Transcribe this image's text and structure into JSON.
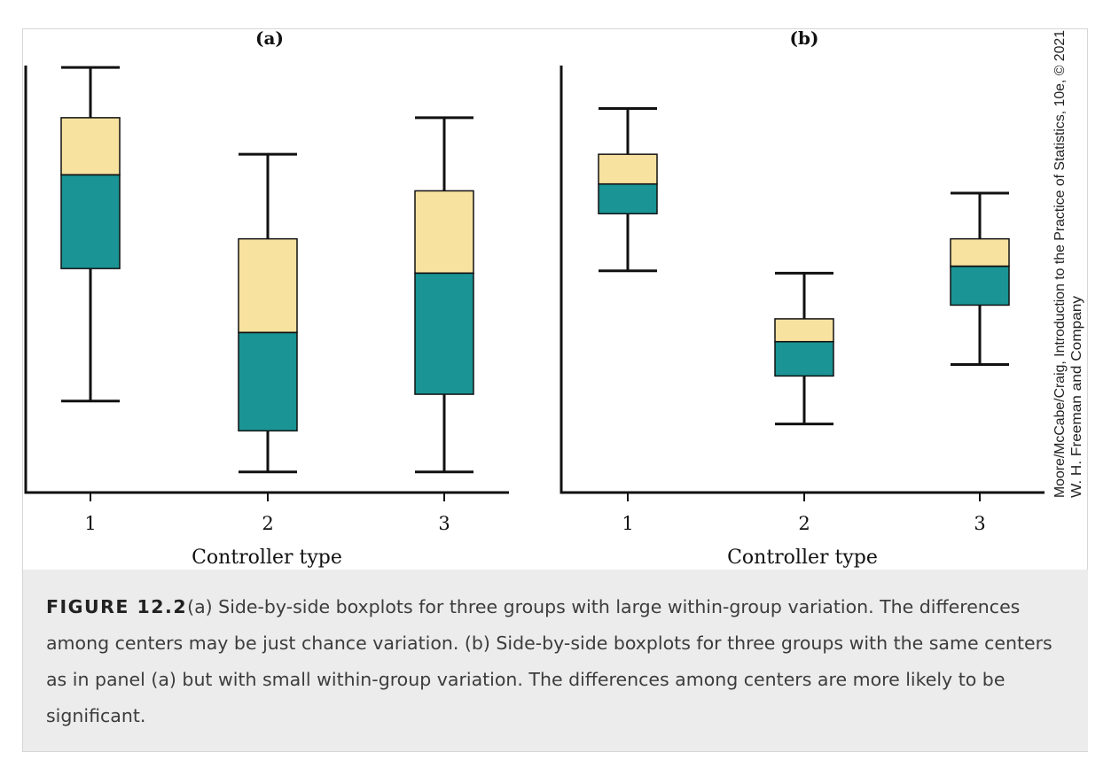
{
  "colors": {
    "upper_box": "#f8e2a0",
    "lower_box": "#1a9494",
    "line": "#111111",
    "caption_bg": "#ececec"
  },
  "chart_data": [
    {
      "type": "boxplot",
      "title": "(a)",
      "xlabel": "Controller type",
      "ylabel": "",
      "categories": [
        "1",
        "2",
        "3"
      ],
      "ylim": [
        0,
        100
      ],
      "boxes": [
        {
          "category": "1",
          "whisker_low": 20,
          "q1": 49,
          "median": 69.5,
          "q3": 82,
          "whisker_high": 93
        },
        {
          "category": "2",
          "whisker_low": 4.5,
          "q1": 13.5,
          "median": 35,
          "q3": 55.5,
          "whisker_high": 74
        },
        {
          "category": "3",
          "whisker_low": 4.5,
          "q1": 21.5,
          "median": 48,
          "q3": 66,
          "whisker_high": 82
        }
      ]
    },
    {
      "type": "boxplot",
      "title": "(b)",
      "xlabel": "Controller type",
      "ylabel": "",
      "categories": [
        "1",
        "2",
        "3"
      ],
      "ylim": [
        0,
        100
      ],
      "boxes": [
        {
          "category": "1",
          "whisker_low": 48.5,
          "q1": 61,
          "median": 67.5,
          "q3": 74,
          "whisker_high": 84
        },
        {
          "category": "2",
          "whisker_low": 15,
          "q1": 25.5,
          "median": 33,
          "q3": 38,
          "whisker_high": 48
        },
        {
          "category": "3",
          "whisker_low": 28,
          "q1": 41,
          "median": 49.5,
          "q3": 55.5,
          "whisker_high": 65.5
        }
      ]
    }
  ],
  "credit": {
    "line1": "Moore/McCabe/Craig, Introduction to the Practice of Statistics, 10e, © 2021",
    "line2": "W. H. Freeman and Company"
  },
  "caption": {
    "label": "FIGURE 12.2",
    "text": "(a) Side-by-side boxplots for three groups with large within-group variation. The differences among centers may be just chance variation. (b) Side-by-side boxplots for three groups with the same centers as in panel (a) but with small within-group variation. The differences among centers are more likely to be significant."
  }
}
